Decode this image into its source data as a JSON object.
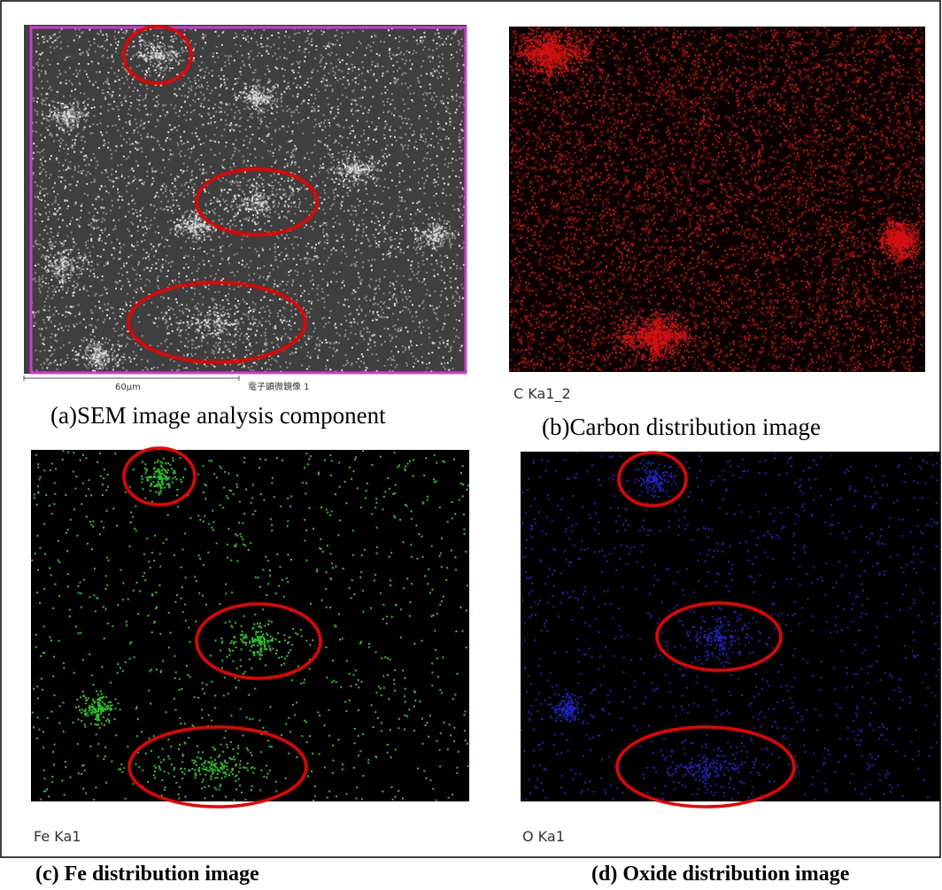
{
  "panels": [
    {
      "image_label": "60μm",
      "image_note": "電子顕微鏡像 1",
      "caption": "(a)SEM image analysis component"
    },
    {
      "image_label": "C Ka1_2",
      "caption": "(b)Carbon distribution image"
    },
    {
      "image_label": "Fe Ka1",
      "caption": "(c) Fe distribution image"
    },
    {
      "image_label": "O Ka1",
      "caption": "(d) Oxide distribution image"
    }
  ]
}
